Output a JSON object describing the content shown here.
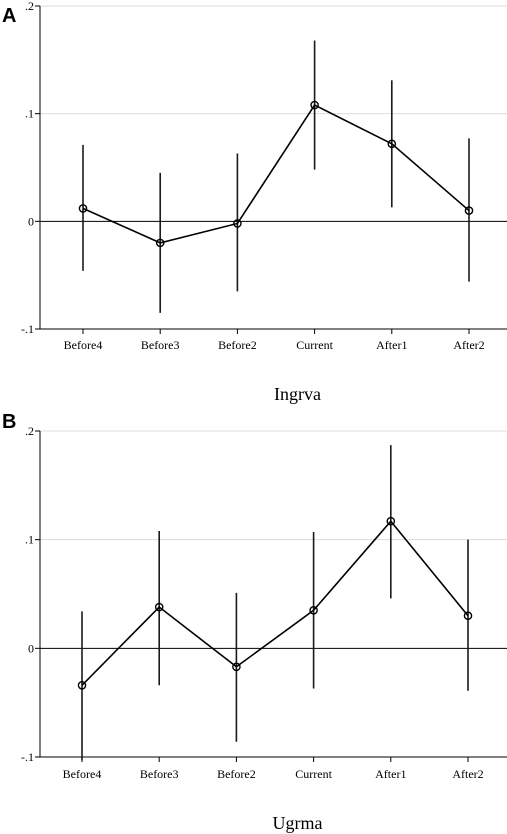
{
  "chart_data": [
    {
      "type": "line",
      "panel_label": "A",
      "categories": [
        "Before4",
        "Before3",
        "Before2",
        "Current",
        "After1",
        "After2"
      ],
      "series": [
        {
          "values": [
            0.012,
            -0.02,
            -0.002,
            0.108,
            0.072,
            0.01
          ],
          "ci_low": [
            -0.046,
            -0.085,
            -0.065,
            0.048,
            0.013,
            -0.056
          ],
          "ci_high": [
            0.071,
            0.045,
            0.063,
            0.168,
            0.131,
            0.077
          ]
        }
      ],
      "xlabel": "Ingrva",
      "ylabel": "",
      "ylim": [
        -0.1,
        0.2
      ],
      "yticks": [
        -0.1,
        0,
        0.1,
        0.2
      ],
      "ytick_labels": [
        "-.1",
        "0",
        ".1",
        ".2"
      ],
      "reference_line_y": 0,
      "grid": true
    },
    {
      "type": "line",
      "panel_label": "B",
      "categories": [
        "Before4",
        "Before3",
        "Before2",
        "Current",
        "After1",
        "After2"
      ],
      "series": [
        {
          "values": [
            -0.034,
            0.038,
            -0.017,
            0.035,
            0.117,
            0.03
          ],
          "ci_low": [
            -0.103,
            -0.034,
            -0.086,
            -0.037,
            0.046,
            -0.039
          ],
          "ci_high": [
            0.034,
            0.108,
            0.051,
            0.107,
            0.187,
            0.1
          ]
        }
      ],
      "xlabel": "Ugrma",
      "ylabel": "",
      "ylim": [
        -0.1,
        0.2
      ],
      "yticks": [
        -0.1,
        0,
        0.1,
        0.2
      ],
      "ytick_labels": [
        "-.1",
        "0",
        ".1",
        ".2"
      ],
      "reference_line_y": 0,
      "grid": true
    }
  ]
}
